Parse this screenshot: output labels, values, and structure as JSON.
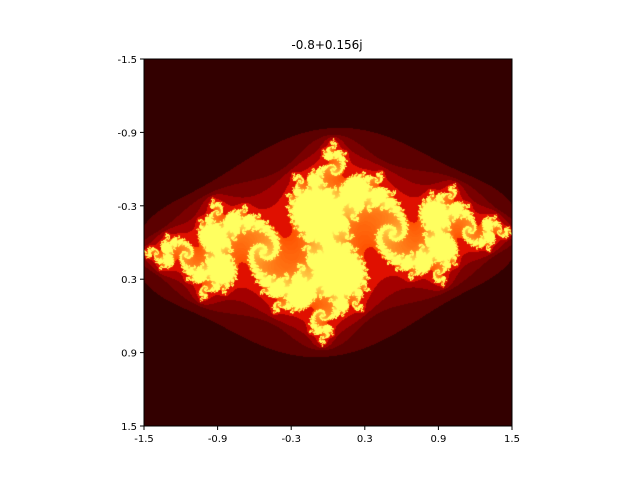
{
  "chart_data": {
    "type": "heatmap",
    "title": "-0.8+0.156j",
    "xlabel": "",
    "ylabel": "",
    "xlim": [
      -1.5,
      1.5
    ],
    "ylim": [
      -1.5,
      1.5
    ],
    "y_inverted": true,
    "grid": false,
    "legend": "none",
    "x_ticks": [
      {
        "value": -1.5,
        "label": "-1.5"
      },
      {
        "value": -0.9,
        "label": "-0.9"
      },
      {
        "value": -0.3,
        "label": "-0.3"
      },
      {
        "value": 0.3,
        "label": "0.3"
      },
      {
        "value": 0.9,
        "label": "0.9"
      },
      {
        "value": 1.5,
        "label": "1.5"
      }
    ],
    "y_ticks": [
      {
        "value": -1.5,
        "label": "-1.5"
      },
      {
        "value": -0.9,
        "label": "-0.9"
      },
      {
        "value": -0.3,
        "label": "-0.3"
      },
      {
        "value": 0.3,
        "label": "0.3"
      },
      {
        "value": 0.9,
        "label": "0.9"
      },
      {
        "value": 1.5,
        "label": "1.5"
      }
    ],
    "julia_constant": {
      "re": -0.8,
      "im": 0.156
    },
    "colormap": "hot",
    "max_iterations": 200,
    "colors": {
      "background": "#330000",
      "band_1": "#5c0000",
      "band_2": "#7a0000",
      "band_3": "#a30000",
      "band_4": "#e01000",
      "highlight": "#ffff60"
    }
  }
}
